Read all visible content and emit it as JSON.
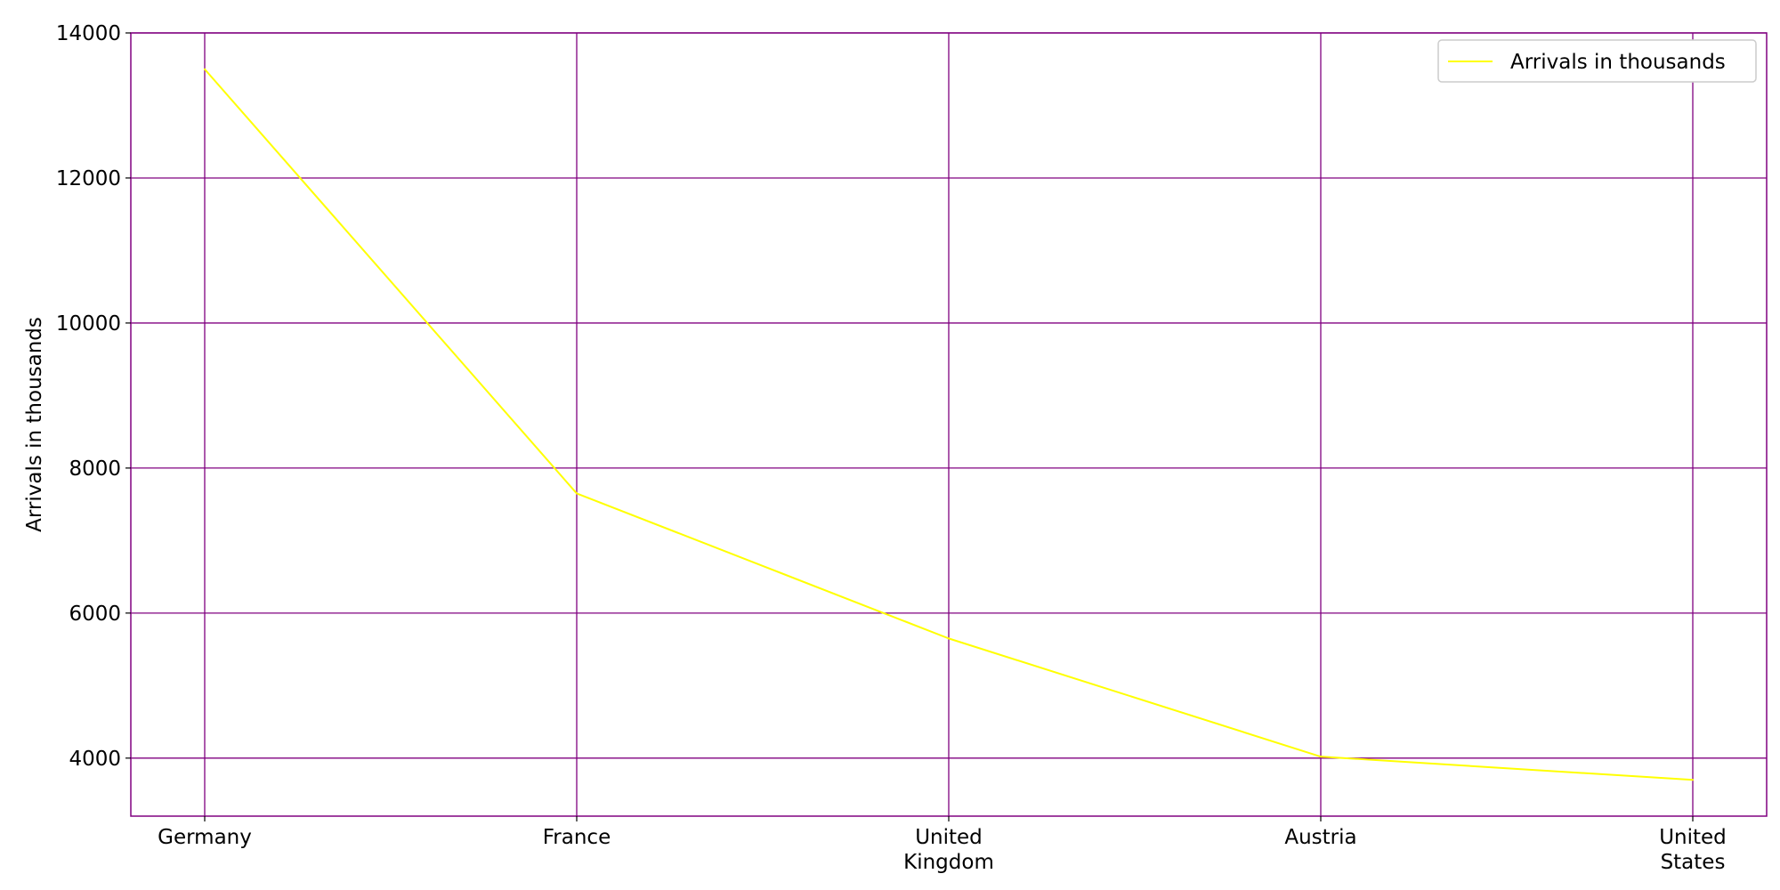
{
  "chart_data": {
    "type": "line",
    "title": "",
    "xlabel": "",
    "ylabel": "Arrivals in thousands",
    "categories": [
      "Germany",
      "France",
      "United\nKingdom",
      "Austria",
      "United\nStates"
    ],
    "series": [
      {
        "name": "Arrivals in thousands",
        "values": [
          13500,
          7650,
          5650,
          4020,
          3700
        ],
        "color": "#ffff00"
      }
    ],
    "ylim": [
      3200,
      14000
    ],
    "yticks": [
      4000,
      6000,
      8000,
      10000,
      12000,
      14000
    ],
    "grid": true,
    "grid_color": "#800080",
    "legend_position": "top-right"
  }
}
